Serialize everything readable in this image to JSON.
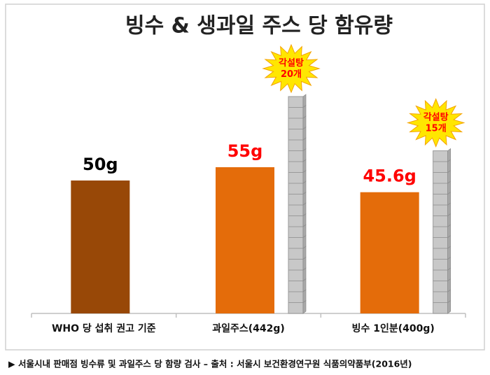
{
  "chart_data": {
    "type": "bar",
    "title": "빙수 & 생과일 주스 당 함유량",
    "categories": [
      "WHO 당 섭취 권고 기준",
      "과일주스(442g)",
      "빙수 1인분(400g)"
    ],
    "values": [
      50,
      55,
      45.6
    ],
    "value_labels": [
      "50g",
      "55g",
      "45.6g"
    ],
    "colors": [
      "#984807",
      "#e46c0a",
      "#e46c0a"
    ],
    "label_colors": [
      "#000000",
      "#ff0000",
      "#ff0000"
    ],
    "sugar_cubes": [
      null,
      20,
      15
    ],
    "sugar_cube_labels": [
      null,
      "각설탕\n20개",
      "각설탕\n15개"
    ],
    "footnote": "▶ 서울시내 판매점 빙수류 및 과일주스 당 함량 검사 – 출처 : 서울시 보건환경연구원 식품의약품부(2016년)"
  }
}
